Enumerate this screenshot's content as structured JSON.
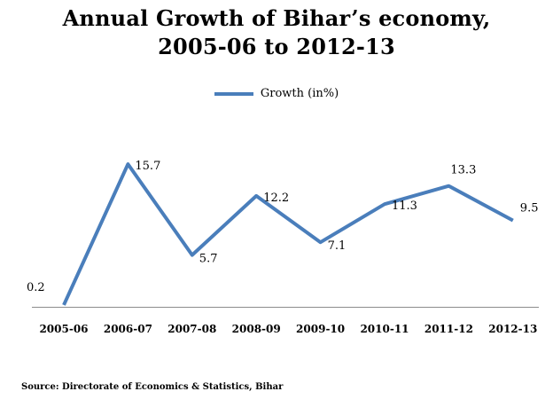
{
  "chart_data": {
    "type": "line",
    "title": "Annual Growth of Bihar’s economy,",
    "subtitle": "2005-06  to 2012-13",
    "categories": [
      "2005-06",
      "2006-07",
      "2007-08",
      "2008-09",
      "2009-10",
      "2010-11",
      "2011-12",
      "2012-13"
    ],
    "series": [
      {
        "name": "Growth (in%)",
        "values": [
          0.2,
          15.7,
          5.7,
          12.2,
          7.1,
          11.3,
          13.3,
          9.5
        ],
        "color": "#4a7ebb"
      }
    ],
    "data_labels": [
      "0.2",
      "15.7",
      "5.7",
      "12.2",
      "7.1",
      "11.3",
      "13.3",
      "9.5"
    ],
    "xlabel": "",
    "ylabel": "",
    "grid": false,
    "legend_position": "top-center"
  },
  "source": "Source: Directorate of Economics & Statistics, Bihar"
}
